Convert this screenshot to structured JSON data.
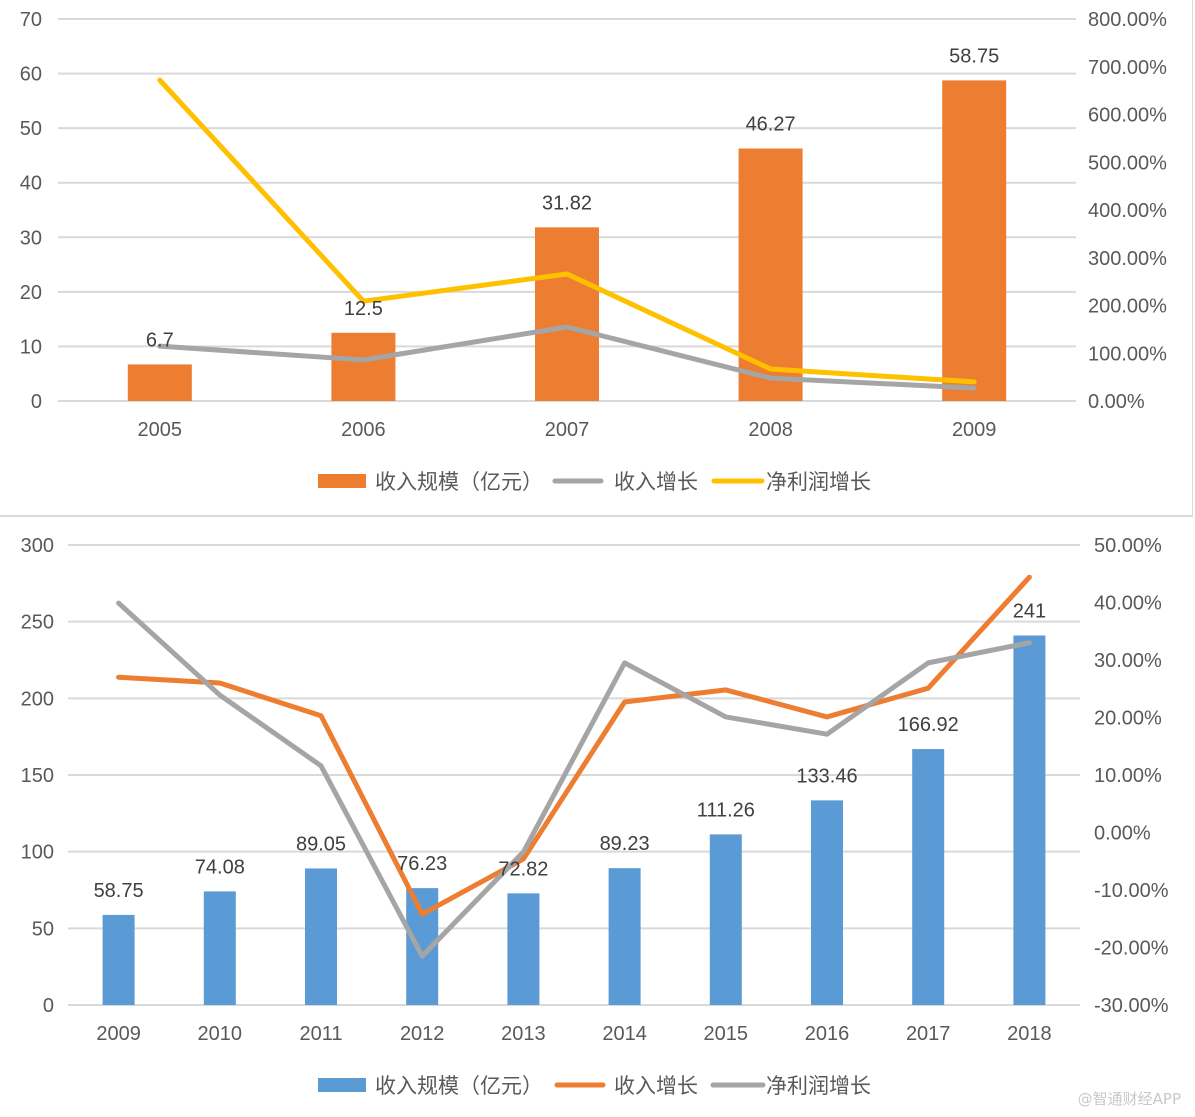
{
  "chart_data": [
    {
      "type": "bar",
      "combo": "bar+line (dual axis)",
      "categories": [
        "2005",
        "2006",
        "2007",
        "2008",
        "2009"
      ],
      "series": [
        {
          "name": "收入规模（亿元）",
          "kind": "bar",
          "axis": "left",
          "color": "#ED7D31",
          "values": [
            6.7,
            12.5,
            31.82,
            46.27,
            58.75
          ],
          "labels": [
            "6.7",
            "12.5",
            "31.82",
            "46.27",
            "58.75"
          ]
        },
        {
          "name": "收入增长",
          "kind": "line",
          "axis": "right",
          "color": "#A5A5A5",
          "values": [
            115,
            86,
            155,
            48,
            27
          ]
        },
        {
          "name": "净利润增长",
          "kind": "line",
          "axis": "right",
          "color": "#FFC000",
          "values": [
            672,
            209,
            266,
            67,
            40
          ]
        }
      ],
      "ylim": [
        0,
        70
      ],
      "yticks": [
        "0",
        "10",
        "20",
        "30",
        "40",
        "50",
        "60",
        "70"
      ],
      "y2lim": [
        0,
        800
      ],
      "y2ticks": [
        "0.00%",
        "100.00%",
        "200.00%",
        "300.00%",
        "400.00%",
        "500.00%",
        "600.00%",
        "700.00%",
        "800.00%"
      ],
      "y2unit": "%",
      "grid": true,
      "legend": "bottom",
      "title": "",
      "xlabel": "",
      "ylabel": ""
    },
    {
      "type": "bar",
      "combo": "bar+line (dual axis)",
      "categories": [
        "2009",
        "2010",
        "2011",
        "2012",
        "2013",
        "2014",
        "2015",
        "2016",
        "2017",
        "2018"
      ],
      "series": [
        {
          "name": "收入规模（亿元）",
          "kind": "bar",
          "axis": "left",
          "color": "#5B9BD5",
          "values": [
            58.75,
            74.08,
            89.05,
            76.23,
            72.82,
            89.23,
            111.26,
            133.46,
            166.92,
            241
          ],
          "labels": [
            "58.75",
            "74.08",
            "89.05",
            "76.23",
            "72.82",
            "89.23",
            "111.26",
            "133.46",
            "166.92",
            "241"
          ]
        },
        {
          "name": "收入增长",
          "kind": "line",
          "axis": "right",
          "color": "#ED7D31",
          "values": [
            27.0,
            26.0,
            20.3,
            -14.2,
            -4.6,
            22.7,
            24.8,
            20.1,
            25.1,
            44.4
          ]
        },
        {
          "name": "净利润增长",
          "kind": "line",
          "axis": "right",
          "color": "#A5A5A5",
          "values": [
            39.9,
            23.9,
            11.6,
            -21.5,
            -3.4,
            29.5,
            20.1,
            17.1,
            29.5,
            33.0
          ]
        }
      ],
      "ylim": [
        0,
        300
      ],
      "yticks": [
        "0",
        "50",
        "100",
        "150",
        "200",
        "250",
        "300"
      ],
      "y2lim": [
        -30,
        50
      ],
      "y2ticks": [
        "-30.00%",
        "-20.00%",
        "-10.00%",
        "0.00%",
        "10.00%",
        "20.00%",
        "30.00%",
        "40.00%",
        "50.00%"
      ],
      "y2unit": "%",
      "grid": true,
      "legend": "bottom",
      "title": "",
      "xlabel": "",
      "ylabel": ""
    }
  ],
  "watermark": "@智通财经APP"
}
